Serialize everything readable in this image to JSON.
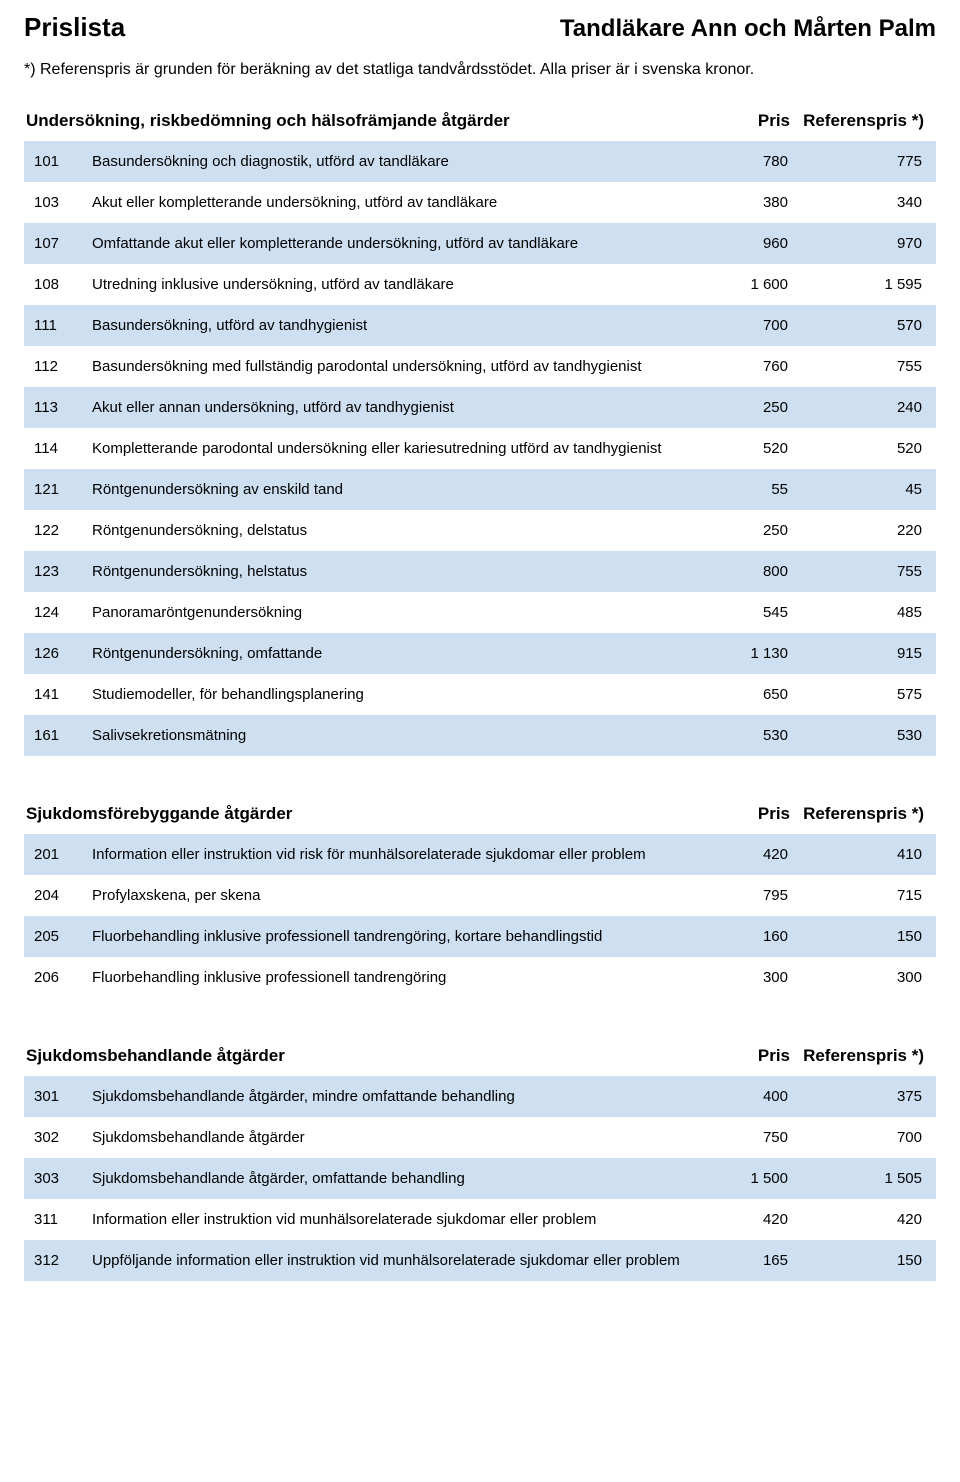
{
  "header": {
    "left": "Prislista",
    "right": "Tandläkare Ann och Mårten Palm"
  },
  "note": "*) Referenspris är grunden för beräkning av det statliga tandvårdsstödet. Alla priser är i svenska kronor.",
  "col_headers": {
    "pris": "Pris",
    "ref": "Referenspris *)"
  },
  "colors": {
    "row_alt": "#cddff1",
    "background": "#ffffff",
    "text": "#000000"
  },
  "typography": {
    "header_left_pt": 26,
    "header_right_pt": 24,
    "note_pt": 16,
    "section_title_pt": 17,
    "body_pt": 15
  },
  "sections": [
    {
      "title": "Undersökning, riskbedömning och hälsofrämjande åtgärder",
      "rows": [
        {
          "code": "101",
          "desc": "Basundersökning och diagnostik, utförd av tandläkare",
          "pris": "780",
          "ref": "775",
          "alt": true
        },
        {
          "code": "103",
          "desc": "Akut eller kompletterande undersökning, utförd av tandläkare",
          "pris": "380",
          "ref": "340",
          "alt": false
        },
        {
          "code": "107",
          "desc": "Omfattande akut eller kompletterande undersökning, utförd av tandläkare",
          "pris": "960",
          "ref": "970",
          "alt": true
        },
        {
          "code": "108",
          "desc": "Utredning inklusive undersökning, utförd av tandläkare",
          "pris": "1 600",
          "ref": "1 595",
          "alt": false
        },
        {
          "code": "111",
          "desc": "Basundersökning, utförd av tandhygienist",
          "pris": "700",
          "ref": "570",
          "alt": true
        },
        {
          "code": "112",
          "desc": "Basundersökning med fullständig parodontal undersökning, utförd av tandhygienist",
          "pris": "760",
          "ref": "755",
          "alt": false
        },
        {
          "code": "113",
          "desc": "Akut eller annan undersökning, utförd av tandhygienist",
          "pris": "250",
          "ref": "240",
          "alt": true
        },
        {
          "code": "114",
          "desc": "Kompletterande parodontal undersökning eller kariesutredning utförd av tandhygienist",
          "pris": "520",
          "ref": "520",
          "alt": false
        },
        {
          "code": "121",
          "desc": "Röntgenundersökning av enskild tand",
          "pris": "55",
          "ref": "45",
          "alt": true
        },
        {
          "code": "122",
          "desc": "Röntgenundersökning, delstatus",
          "pris": "250",
          "ref": "220",
          "alt": false
        },
        {
          "code": "123",
          "desc": "Röntgenundersökning, helstatus",
          "pris": "800",
          "ref": "755",
          "alt": true
        },
        {
          "code": "124",
          "desc": "Panoramaröntgenundersökning",
          "pris": "545",
          "ref": "485",
          "alt": false
        },
        {
          "code": "126",
          "desc": "Röntgenundersökning, omfattande",
          "pris": "1 130",
          "ref": "915",
          "alt": true
        },
        {
          "code": "141",
          "desc": "Studiemodeller, för behandlingsplanering",
          "pris": "650",
          "ref": "575",
          "alt": false
        },
        {
          "code": "161",
          "desc": "Salivsekretionsmätning",
          "pris": "530",
          "ref": "530",
          "alt": true
        }
      ]
    },
    {
      "title": "Sjukdomsförebyggande åtgärder",
      "rows": [
        {
          "code": "201",
          "desc": "Information eller instruktion vid risk för munhälsorelaterade sjukdomar eller problem",
          "pris": "420",
          "ref": "410",
          "alt": true
        },
        {
          "code": "204",
          "desc": "Profylaxskena, per skena",
          "pris": "795",
          "ref": "715",
          "alt": false
        },
        {
          "code": "205",
          "desc": "Fluorbehandling inklusive professionell tandrengöring, kortare behandlingstid",
          "pris": "160",
          "ref": "150",
          "alt": true
        },
        {
          "code": "206",
          "desc": "Fluorbehandling inklusive professionell tandrengöring",
          "pris": "300",
          "ref": "300",
          "alt": false
        }
      ]
    },
    {
      "title": "Sjukdomsbehandlande åtgärder",
      "rows": [
        {
          "code": "301",
          "desc": "Sjukdomsbehandlande åtgärder, mindre omfattande behandling",
          "pris": "400",
          "ref": "375",
          "alt": true
        },
        {
          "code": "302",
          "desc": "Sjukdomsbehandlande åtgärder",
          "pris": "750",
          "ref": "700",
          "alt": false
        },
        {
          "code": "303",
          "desc": "Sjukdomsbehandlande åtgärder, omfattande behandling",
          "pris": "1 500",
          "ref": "1 505",
          "alt": true
        },
        {
          "code": "311",
          "desc": "Information eller instruktion vid munhälsorelaterade sjukdomar eller problem",
          "pris": "420",
          "ref": "420",
          "alt": false
        },
        {
          "code": "312",
          "desc": "Uppföljande information eller instruktion vid munhälsorelaterade sjukdomar eller problem",
          "pris": "165",
          "ref": "150",
          "alt": true
        }
      ]
    }
  ]
}
